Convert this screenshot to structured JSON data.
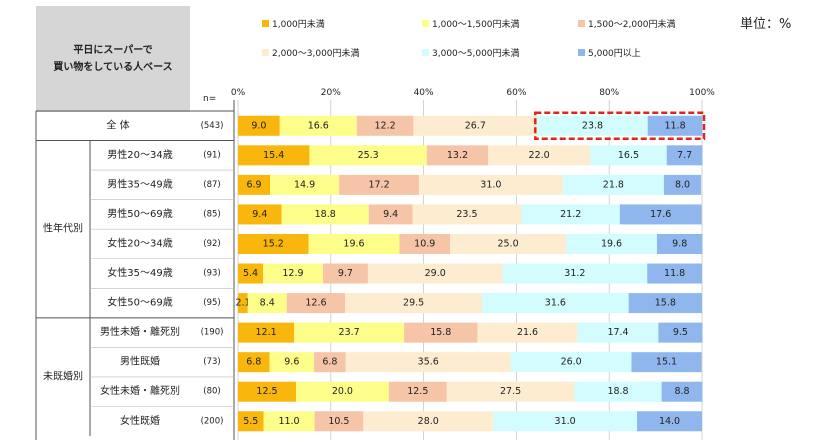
{
  "header": {
    "title_line1": "平日にスーパーで",
    "title_line2": "買い物をしている人ベース",
    "unit": "単位：%",
    "n_label": "n="
  },
  "colors": [
    "#f9b60c",
    "#fdfd8a",
    "#f6c4a6",
    "#fdecd0",
    "#d2fcfd",
    "#8fb7ee"
  ],
  "highlight_color": "#e0261a",
  "chart_data": {
    "type": "bar",
    "orientation": "horizontal-stacked-100",
    "xlim": [
      0,
      100
    ],
    "x_ticks": [
      "0%",
      "20%",
      "40%",
      "60%",
      "80%",
      "100%"
    ],
    "legend_placement": "top",
    "series": [
      {
        "name": "1,000円未満"
      },
      {
        "name": "1,000～1,500円未満"
      },
      {
        "name": "1,500～2,000円未満"
      },
      {
        "name": "2,000～3,000円未満"
      },
      {
        "name": "3,000～5,000円未満"
      },
      {
        "name": "5,000円以上"
      }
    ],
    "groups": [
      {
        "label": "",
        "rows": [
          0
        ]
      },
      {
        "label": "性年代別",
        "rows": [
          1,
          2,
          3,
          4,
          5,
          6
        ]
      },
      {
        "label": "未既婚別",
        "rows": [
          7,
          8,
          9,
          10
        ]
      }
    ],
    "rows": [
      {
        "label": "全 体",
        "n": "(543)",
        "values": [
          9.0,
          16.6,
          12.2,
          26.7,
          23.8,
          11.8
        ],
        "highlight": true
      },
      {
        "label": "男性20～34歳",
        "n": "(91)",
        "values": [
          15.4,
          25.3,
          13.2,
          22.0,
          16.5,
          7.7
        ]
      },
      {
        "label": "男性35～49歳",
        "n": "(87)",
        "values": [
          6.9,
          14.9,
          17.2,
          31.0,
          21.8,
          8.0
        ]
      },
      {
        "label": "男性50～69歳",
        "n": "(85)",
        "values": [
          9.4,
          18.8,
          9.4,
          23.5,
          21.2,
          17.6
        ]
      },
      {
        "label": "女性20～34歳",
        "n": "(92)",
        "values": [
          15.2,
          19.6,
          10.9,
          25.0,
          19.6,
          9.8
        ]
      },
      {
        "label": "女性35～49歳",
        "n": "(93)",
        "values": [
          5.4,
          12.9,
          9.7,
          29.0,
          31.2,
          11.8
        ]
      },
      {
        "label": "女性50～69歳",
        "n": "(95)",
        "values": [
          2.1,
          8.4,
          12.6,
          29.5,
          31.6,
          15.8
        ]
      },
      {
        "label": "男性未婚・離死別",
        "n": "(190)",
        "values": [
          12.1,
          23.7,
          15.8,
          21.6,
          17.4,
          9.5
        ]
      },
      {
        "label": "男性既婚",
        "n": "(73)",
        "values": [
          6.8,
          9.6,
          6.8,
          35.6,
          26.0,
          15.1
        ]
      },
      {
        "label": "女性未婚・離死別",
        "n": "(80)",
        "values": [
          12.5,
          20.0,
          12.5,
          27.5,
          18.8,
          8.8
        ]
      },
      {
        "label": "女性既婚",
        "n": "(200)",
        "values": [
          5.5,
          11.0,
          10.5,
          28.0,
          31.0,
          14.0
        ]
      }
    ]
  }
}
